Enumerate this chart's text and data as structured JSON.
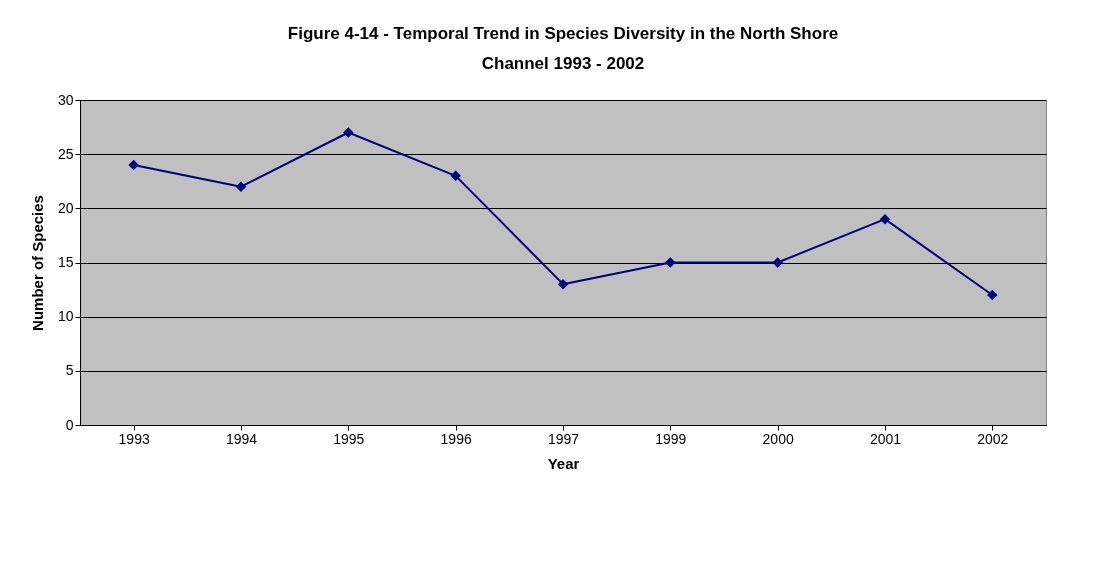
{
  "chart_data": {
    "type": "line",
    "title": "Figure 4-14 - Temporal Trend in Species Diversity in the North Shore\nChannel 1993 - 2002",
    "xlabel": "Year",
    "ylabel": "Number of Species",
    "categories": [
      "1993",
      "1994",
      "1995",
      "1996",
      "1997",
      "1999",
      "2000",
      "2001",
      "2002"
    ],
    "series": [
      {
        "color": "#000080",
        "values": [
          24,
          22,
          27,
          23,
          13,
          15,
          15,
          19,
          12
        ]
      }
    ],
    "ylim": [
      0,
      30
    ],
    "yticks": [
      0,
      5,
      10,
      15,
      20,
      25,
      30
    ],
    "grid": "y",
    "marker": "diamond",
    "line_style": "solid"
  }
}
